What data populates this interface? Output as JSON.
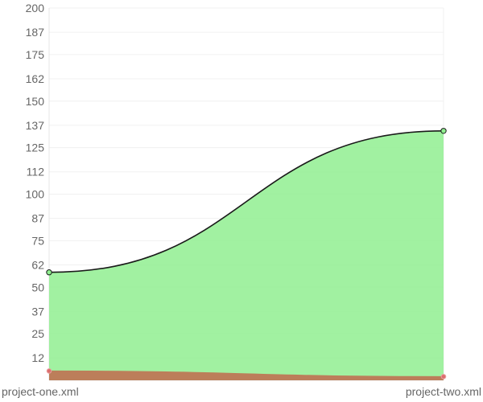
{
  "chart_data": {
    "type": "area",
    "title": "",
    "xlabel": "",
    "ylabel": "",
    "categories": [
      "project-one.xml",
      "project-two.xml"
    ],
    "ylim": [
      0,
      200
    ],
    "yticks": [
      "200",
      "187",
      "175",
      "162",
      "150",
      "137",
      "125",
      "112",
      "100",
      "87",
      "75",
      "62",
      "50",
      "37",
      "25",
      "12"
    ],
    "grid": true,
    "legend": "none",
    "series": [
      {
        "values": [
          58,
          134
        ],
        "color": "#90EE90",
        "stroke": "#1a1a1a",
        "point": "#90EE90"
      },
      {
        "values": [
          5,
          2
        ],
        "color": "#bc7e5a",
        "stroke": "#bc7e5a",
        "point": "#dc6e6e"
      }
    ]
  }
}
